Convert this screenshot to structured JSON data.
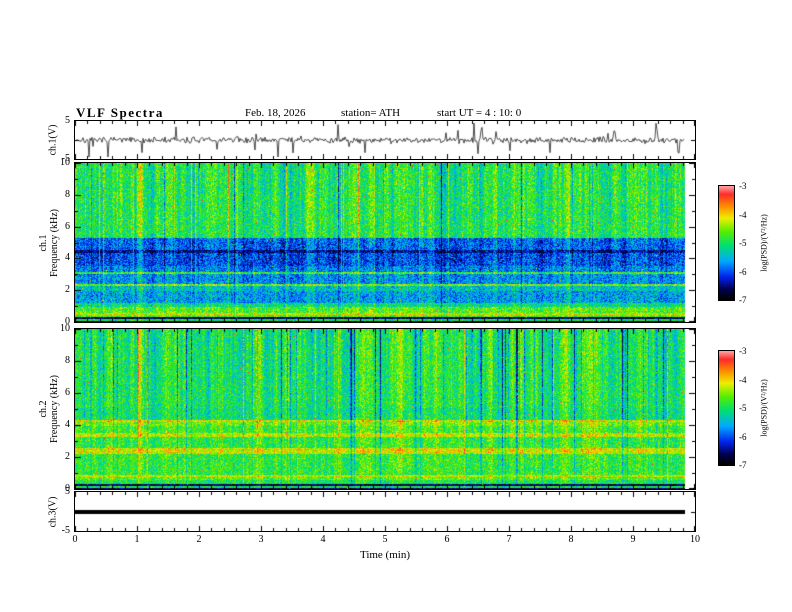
{
  "title": "VLF  Spectra",
  "header": {
    "date": "Feb. 18, 2026",
    "station": "station= ATH",
    "start_ut": "start UT =  4 : 10: 0"
  },
  "xaxis": {
    "label": "Time  (min)",
    "min": 0,
    "max": 10,
    "ticks": [
      "0",
      "1",
      "2",
      "3",
      "4",
      "5",
      "6",
      "7",
      "8",
      "9",
      "10"
    ]
  },
  "colorbar": {
    "label": "log(PSD)/(V²/Hz)",
    "min": -7,
    "max": -3,
    "ticks": [
      {
        "v": -3,
        "label": "-3"
      },
      {
        "v": -4,
        "label": "-4"
      },
      {
        "v": -5,
        "label": "-5"
      },
      {
        "v": -6,
        "label": "-6"
      },
      {
        "v": -7,
        "label": "-7"
      }
    ],
    "stops": [
      [
        0.0,
        "#000000"
      ],
      [
        0.09,
        "#00004d"
      ],
      [
        0.2,
        "#0022ee"
      ],
      [
        0.34,
        "#00aaff"
      ],
      [
        0.48,
        "#00e070"
      ],
      [
        0.6,
        "#55ee00"
      ],
      [
        0.72,
        "#eeee00"
      ],
      [
        0.83,
        "#ff8800"
      ],
      [
        0.93,
        "#ff2a2a"
      ],
      [
        1.0,
        "#ff9f9f"
      ]
    ]
  },
  "chart_data": {
    "type": "heatmap",
    "title": "VLF Spectra, station ATH, Feb. 18 2026, start UT 4:10:0",
    "x_range_min": [
      0,
      10
    ],
    "psd_scale_log": [
      -7,
      -3
    ],
    "events": [
      {
        "t": 1.05,
        "w": 3,
        "amp": 0.28
      }
    ],
    "panels": [
      {
        "id": "ch1v",
        "type": "waveform",
        "ylabel_lines": [
          "ch.1(V)"
        ],
        "ymin": -5,
        "ymax": 5,
        "yticks": [
          {
            "v": 5,
            "label": "5"
          },
          {
            "v": -5,
            "label": "-5"
          }
        ],
        "seed": 7,
        "noise_v": 0.9,
        "spike_prob": 0.045,
        "spike_down_bias": 0.7
      },
      {
        "id": "ch1spec",
        "type": "spectrogram",
        "ylabel_lines": [
          "ch.1",
          "Frequency (kHz)"
        ],
        "ymin": 0,
        "ymax": 10,
        "yticks": [
          {
            "v": 0,
            "label": "0"
          },
          {
            "v": 2,
            "label": "2"
          },
          {
            "v": 4,
            "label": "4"
          },
          {
            "v": 6,
            "label": "6"
          },
          {
            "v": 8,
            "label": "8"
          },
          {
            "v": 10,
            "label": "10"
          }
        ],
        "seed": 42,
        "base": 0.5,
        "noise": 0.26,
        "streak_density": 0.1,
        "streak_neg_prob": 0.35,
        "streak_scale": 0.3,
        "bands": [
          {
            "f0": 0.0,
            "f1": 0.12,
            "v": 0.06
          },
          {
            "f0": 0.12,
            "f1": 0.2,
            "v": 0.5
          },
          {
            "f0": 0.2,
            "f1": 0.32,
            "v": 0.08
          },
          {
            "f0": 0.32,
            "f1": 0.5,
            "v": 0.6
          },
          {
            "f0": 0.5,
            "f1": 0.6,
            "v": 0.7
          },
          {
            "f0": 0.6,
            "f1": 0.95,
            "v": 0.58
          },
          {
            "f0": 0.95,
            "f1": 1.25,
            "v": 0.46
          },
          {
            "f0": 1.25,
            "f1": 2.0,
            "v": 0.34
          },
          {
            "f0": 2.0,
            "f1": 2.3,
            "v": 0.4
          },
          {
            "f0": 2.3,
            "f1": 2.45,
            "v": 0.62
          },
          {
            "f0": 2.45,
            "f1": 3.05,
            "v": 0.32
          },
          {
            "f0": 3.05,
            "f1": 3.2,
            "v": 0.56
          },
          {
            "f0": 3.2,
            "f1": 3.55,
            "v": 0.3
          },
          {
            "f0": 3.55,
            "f1": 4.35,
            "v": 0.24
          },
          {
            "f0": 4.35,
            "f1": 4.55,
            "v": 0.13
          },
          {
            "f0": 4.55,
            "f1": 5.3,
            "v": 0.27
          },
          {
            "f0": 5.3,
            "f1": 10.01,
            "v": 0.52
          }
        ]
      },
      {
        "id": "ch2spec",
        "type": "spectrogram",
        "ylabel_lines": [
          "ch.2",
          "Frequency (kHz)"
        ],
        "ymin": 0,
        "ymax": 10,
        "yticks": [
          {
            "v": 0,
            "label": "0"
          },
          {
            "v": 2,
            "label": "2"
          },
          {
            "v": 4,
            "label": "4"
          },
          {
            "v": 6,
            "label": "6"
          },
          {
            "v": 8,
            "label": "8"
          },
          {
            "v": 10,
            "label": "10"
          }
        ],
        "seed": 1337,
        "base": 0.5,
        "noise": 0.24,
        "streak_density": 0.11,
        "streak_neg_prob": 0.75,
        "streak_scale": 0.38,
        "bands": [
          {
            "f0": 0.0,
            "f1": 0.12,
            "v": 0.06
          },
          {
            "f0": 0.12,
            "f1": 0.22,
            "v": 0.5
          },
          {
            "f0": 0.22,
            "f1": 0.34,
            "v": 0.08
          },
          {
            "f0": 0.34,
            "f1": 0.62,
            "v": 0.52
          },
          {
            "f0": 0.62,
            "f1": 0.78,
            "v": 0.6
          },
          {
            "f0": 0.78,
            "f1": 0.9,
            "v": 0.7
          },
          {
            "f0": 0.9,
            "f1": 2.25,
            "v": 0.55
          },
          {
            "f0": 2.25,
            "f1": 2.6,
            "v": 0.72
          },
          {
            "f0": 2.6,
            "f1": 3.3,
            "v": 0.55
          },
          {
            "f0": 3.3,
            "f1": 3.55,
            "v": 0.7
          },
          {
            "f0": 3.55,
            "f1": 3.95,
            "v": 0.57
          },
          {
            "f0": 3.95,
            "f1": 4.2,
            "v": 0.63
          },
          {
            "f0": 4.2,
            "f1": 4.35,
            "v": 0.74
          },
          {
            "f0": 4.35,
            "f1": 5.1,
            "v": 0.5
          },
          {
            "f0": 5.1,
            "f1": 10.01,
            "v": 0.52
          }
        ]
      },
      {
        "id": "ch3v",
        "type": "flatline",
        "ylabel_lines": [
          "ch.3(V)"
        ],
        "ymin": -5,
        "ymax": 5,
        "value": 0,
        "yticks": [
          {
            "v": 5,
            "label": "5"
          },
          {
            "v": -5,
            "label": "-5"
          }
        ]
      }
    ]
  }
}
